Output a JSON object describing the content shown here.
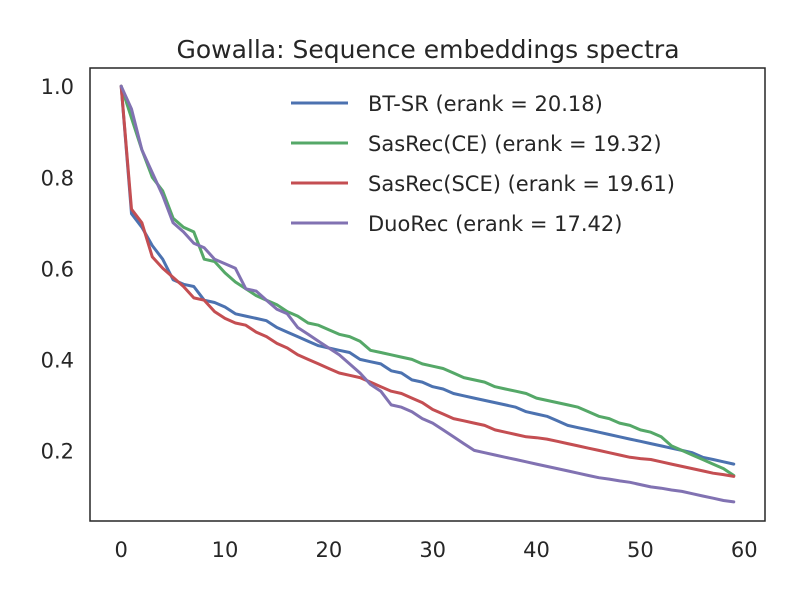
{
  "chart_data": {
    "type": "line",
    "title": "Gowalla: Sequence embeddings spectra",
    "xlabel": "",
    "ylabel": "",
    "xlim": [
      -3,
      62
    ],
    "ylim": [
      0.045,
      1.04
    ],
    "xticks": [
      0,
      10,
      20,
      30,
      40,
      50,
      60
    ],
    "yticks": [
      0.2,
      0.4,
      0.6,
      0.8,
      1.0
    ],
    "xtick_labels": [
      "0",
      "10",
      "20",
      "30",
      "40",
      "50",
      "60"
    ],
    "ytick_labels": [
      "0.2",
      "0.4",
      "0.6",
      "0.8",
      "1.0"
    ],
    "grid": false,
    "legend_position": "top-right",
    "series": [
      {
        "name": "BT-SR (erank = 20.18)",
        "color": "#4c72b0",
        "values": [
          1.0,
          0.72,
          0.69,
          0.65,
          0.62,
          0.575,
          0.565,
          0.56,
          0.53,
          0.525,
          0.515,
          0.5,
          0.495,
          0.49,
          0.485,
          0.47,
          0.46,
          0.45,
          0.44,
          0.43,
          0.425,
          0.42,
          0.415,
          0.4,
          0.395,
          0.39,
          0.375,
          0.37,
          0.355,
          0.35,
          0.34,
          0.335,
          0.325,
          0.32,
          0.315,
          0.31,
          0.305,
          0.3,
          0.295,
          0.285,
          0.28,
          0.275,
          0.265,
          0.255,
          0.25,
          0.245,
          0.24,
          0.235,
          0.23,
          0.225,
          0.22,
          0.215,
          0.21,
          0.205,
          0.2,
          0.195,
          0.185,
          0.18,
          0.175,
          0.17
        ]
      },
      {
        "name": "SasRec(CE) (erank = 19.32)",
        "color": "#55a868",
        "values": [
          1.0,
          0.93,
          0.86,
          0.8,
          0.77,
          0.71,
          0.69,
          0.68,
          0.62,
          0.615,
          0.59,
          0.57,
          0.555,
          0.54,
          0.53,
          0.52,
          0.505,
          0.495,
          0.48,
          0.475,
          0.465,
          0.455,
          0.45,
          0.44,
          0.42,
          0.415,
          0.41,
          0.405,
          0.4,
          0.39,
          0.385,
          0.38,
          0.37,
          0.36,
          0.355,
          0.35,
          0.34,
          0.335,
          0.33,
          0.325,
          0.315,
          0.31,
          0.305,
          0.3,
          0.295,
          0.285,
          0.275,
          0.27,
          0.26,
          0.255,
          0.245,
          0.24,
          0.23,
          0.21,
          0.2,
          0.19,
          0.18,
          0.17,
          0.16,
          0.145
        ]
      },
      {
        "name": "SasRec(SCE) (erank = 19.61)",
        "color": "#c44e52",
        "values": [
          1.0,
          0.73,
          0.7,
          0.625,
          0.6,
          0.58,
          0.56,
          0.535,
          0.53,
          0.505,
          0.49,
          0.48,
          0.475,
          0.46,
          0.45,
          0.435,
          0.425,
          0.41,
          0.4,
          0.39,
          0.38,
          0.37,
          0.365,
          0.36,
          0.35,
          0.34,
          0.33,
          0.325,
          0.315,
          0.305,
          0.29,
          0.28,
          0.27,
          0.265,
          0.26,
          0.255,
          0.245,
          0.24,
          0.235,
          0.23,
          0.228,
          0.225,
          0.22,
          0.215,
          0.21,
          0.205,
          0.2,
          0.195,
          0.19,
          0.185,
          0.182,
          0.18,
          0.175,
          0.17,
          0.165,
          0.16,
          0.155,
          0.15,
          0.147,
          0.143
        ]
      },
      {
        "name": "DuoRec (erank = 17.42)",
        "color": "#8172b2",
        "values": [
          1.0,
          0.95,
          0.86,
          0.81,
          0.76,
          0.7,
          0.68,
          0.655,
          0.645,
          0.62,
          0.61,
          0.6,
          0.555,
          0.55,
          0.53,
          0.51,
          0.5,
          0.47,
          0.455,
          0.44,
          0.425,
          0.41,
          0.39,
          0.37,
          0.345,
          0.33,
          0.3,
          0.295,
          0.285,
          0.27,
          0.26,
          0.245,
          0.23,
          0.215,
          0.2,
          0.195,
          0.19,
          0.185,
          0.18,
          0.175,
          0.17,
          0.165,
          0.16,
          0.155,
          0.15,
          0.145,
          0.14,
          0.137,
          0.133,
          0.13,
          0.125,
          0.12,
          0.117,
          0.113,
          0.11,
          0.105,
          0.1,
          0.095,
          0.09,
          0.087
        ]
      }
    ]
  }
}
